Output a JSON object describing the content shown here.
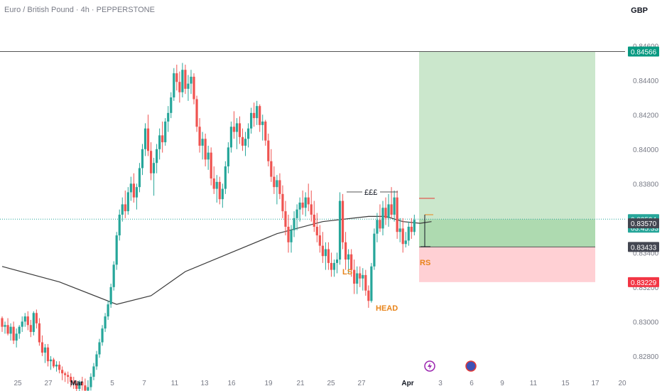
{
  "header": {
    "title": "Euro / British Pound · 4h · PEPPERSTONE",
    "currency": "GBP"
  },
  "colors": {
    "up": "#26a69a",
    "down": "#ef5350",
    "ma": "#3a3a3a",
    "target_zone": "#c8e6c9",
    "stop_zone": "#ffcdd2",
    "annotation": "#e8841a"
  },
  "chart_data": {
    "type": "candlestick",
    "title": "Euro / British Pound · 4h · PEPPERSTONE",
    "ylim": [
      0.8268,
      0.847
    ],
    "y_ticks": [
      {
        "value": 0.846,
        "label": "0.84600"
      },
      {
        "value": 0.844,
        "label": "0.84400"
      },
      {
        "value": 0.842,
        "label": "0.84200"
      },
      {
        "value": 0.84,
        "label": "0.84000"
      },
      {
        "value": 0.838,
        "label": "0.83800"
      },
      {
        "value": 0.836,
        "label": "0.83600"
      },
      {
        "value": 0.834,
        "label": "0.83400"
      },
      {
        "value": 0.832,
        "label": "0.83200"
      },
      {
        "value": 0.83,
        "label": "0.83000"
      },
      {
        "value": 0.828,
        "label": "0.82800"
      }
    ],
    "x_ticks": [
      {
        "label": "25",
        "bold": false
      },
      {
        "label": "27",
        "bold": false
      },
      {
        "label": "Mar",
        "bold": true
      },
      {
        "label": "5",
        "bold": false
      },
      {
        "label": "7",
        "bold": false
      },
      {
        "label": "11",
        "bold": false
      },
      {
        "label": "13",
        "bold": false
      },
      {
        "label": "16",
        "bold": false
      },
      {
        "label": "19",
        "bold": false
      },
      {
        "label": "21",
        "bold": false
      },
      {
        "label": "25",
        "bold": false
      },
      {
        "label": "27",
        "bold": false
      },
      {
        "label": "Apr",
        "bold": true
      },
      {
        "label": "3",
        "bold": false
      },
      {
        "label": "6",
        "bold": false
      },
      {
        "label": "9",
        "bold": false
      },
      {
        "label": "11",
        "bold": false
      },
      {
        "label": "15",
        "bold": false
      },
      {
        "label": "17",
        "bold": false
      },
      {
        "label": "20",
        "bold": false
      }
    ],
    "price_labels": [
      {
        "value": 0.84566,
        "label": "0.84566",
        "color": "#089981"
      },
      {
        "value": 0.83594,
        "label": "0.83594",
        "color": "#26a69a",
        "sub": "03:45:33"
      },
      {
        "value": 0.8357,
        "label": "0.83570",
        "color": "#434651"
      },
      {
        "value": 0.83433,
        "label": "0.83433",
        "color": "#434651"
      },
      {
        "value": 0.83229,
        "label": "0.83229",
        "color": "#f23645"
      }
    ],
    "levels": {
      "resistance": 0.84566,
      "current": 0.83594,
      "entry": 0.8357,
      "stop_top": 0.83433,
      "stop": 0.83229
    },
    "annotations": [
      {
        "text": "£££",
        "kind": "liquidity"
      },
      {
        "text": "LS",
        "kind": "left-shoulder"
      },
      {
        "text": "HEAD",
        "kind": "head"
      },
      {
        "text": "RS",
        "kind": "right-shoulder"
      }
    ],
    "candles": [
      [
        0.8302,
        0.8303,
        0.8294,
        0.8297
      ],
      [
        0.8297,
        0.83,
        0.8293,
        0.8298
      ],
      [
        0.8298,
        0.8302,
        0.8292,
        0.8293
      ],
      [
        0.8293,
        0.8299,
        0.8289,
        0.8297
      ],
      [
        0.8297,
        0.83,
        0.8287,
        0.8289
      ],
      [
        0.8289,
        0.8296,
        0.8285,
        0.8293
      ],
      [
        0.8293,
        0.8298,
        0.829,
        0.8297
      ],
      [
        0.8297,
        0.8303,
        0.8294,
        0.83
      ],
      [
        0.83,
        0.8305,
        0.8297,
        0.8303
      ],
      [
        0.8303,
        0.8306,
        0.8295,
        0.8298
      ],
      [
        0.8298,
        0.8301,
        0.8291,
        0.8294
      ],
      [
        0.8294,
        0.8306,
        0.8292,
        0.8305
      ],
      [
        0.8305,
        0.8307,
        0.8296,
        0.8299
      ],
      [
        0.8299,
        0.8302,
        0.8286,
        0.8288
      ],
      [
        0.8288,
        0.8292,
        0.828,
        0.8282
      ],
      [
        0.8282,
        0.8287,
        0.8276,
        0.8285
      ],
      [
        0.8285,
        0.8287,
        0.8274,
        0.8277
      ],
      [
        0.8277,
        0.828,
        0.8272,
        0.8278
      ],
      [
        0.8278,
        0.8279,
        0.8273,
        0.8274
      ],
      [
        0.8274,
        0.8277,
        0.8271,
        0.8275
      ],
      [
        0.8275,
        0.8277,
        0.827,
        0.8272
      ],
      [
        0.8272,
        0.8274,
        0.8266,
        0.827
      ],
      [
        0.827,
        0.8271,
        0.8265,
        0.8269
      ],
      [
        0.8269,
        0.8271,
        0.8264,
        0.8268
      ],
      [
        0.8268,
        0.827,
        0.8262,
        0.8265
      ],
      [
        0.8265,
        0.8268,
        0.8261,
        0.8264
      ],
      [
        0.8264,
        0.8266,
        0.8259,
        0.8261
      ],
      [
        0.8261,
        0.8266,
        0.8258,
        0.8265
      ],
      [
        0.8265,
        0.8268,
        0.826,
        0.8263
      ],
      [
        0.8263,
        0.8267,
        0.8258,
        0.826
      ],
      [
        0.826,
        0.8266,
        0.8257,
        0.8262
      ],
      [
        0.8262,
        0.827,
        0.826,
        0.8268
      ],
      [
        0.8268,
        0.8276,
        0.8266,
        0.8274
      ],
      [
        0.8274,
        0.8283,
        0.8272,
        0.8281
      ],
      [
        0.8281,
        0.829,
        0.8279,
        0.8288
      ],
      [
        0.8288,
        0.8298,
        0.8286,
        0.8296
      ],
      [
        0.8296,
        0.8305,
        0.8294,
        0.8303
      ],
      [
        0.8303,
        0.8312,
        0.8301,
        0.831
      ],
      [
        0.831,
        0.8322,
        0.8308,
        0.832
      ],
      [
        0.832,
        0.8335,
        0.8318,
        0.8333
      ],
      [
        0.8333,
        0.8352,
        0.833,
        0.835
      ],
      [
        0.835,
        0.8365,
        0.8347,
        0.8362
      ],
      [
        0.8362,
        0.8372,
        0.8358,
        0.8368
      ],
      [
        0.8368,
        0.8376,
        0.836,
        0.8364
      ],
      [
        0.8364,
        0.8378,
        0.8362,
        0.8375
      ],
      [
        0.8375,
        0.8384,
        0.837,
        0.838
      ],
      [
        0.838,
        0.8386,
        0.8369,
        0.8372
      ],
      [
        0.8372,
        0.838,
        0.8365,
        0.8378
      ],
      [
        0.8378,
        0.8392,
        0.8375,
        0.8389
      ],
      [
        0.8389,
        0.8403,
        0.8385,
        0.84
      ],
      [
        0.84,
        0.8415,
        0.8396,
        0.8412
      ],
      [
        0.8412,
        0.842,
        0.8396,
        0.8399
      ],
      [
        0.8399,
        0.8404,
        0.8382,
        0.8386
      ],
      [
        0.8386,
        0.8395,
        0.8373,
        0.8392
      ],
      [
        0.8392,
        0.8403,
        0.8386,
        0.84
      ],
      [
        0.84,
        0.8412,
        0.8394,
        0.8408
      ],
      [
        0.8408,
        0.8416,
        0.8398,
        0.8404
      ],
      [
        0.8404,
        0.8418,
        0.8402,
        0.8416
      ],
      [
        0.8416,
        0.8425,
        0.841,
        0.8421
      ],
      [
        0.8421,
        0.8433,
        0.8418,
        0.843
      ],
      [
        0.843,
        0.8447,
        0.8428,
        0.8444
      ],
      [
        0.8444,
        0.8449,
        0.8434,
        0.8439
      ],
      [
        0.8439,
        0.8445,
        0.8427,
        0.8433
      ],
      [
        0.8433,
        0.845,
        0.843,
        0.8446
      ],
      [
        0.8446,
        0.8449,
        0.8432,
        0.8435
      ],
      [
        0.8435,
        0.8443,
        0.8428,
        0.8438
      ],
      [
        0.8438,
        0.8446,
        0.8432,
        0.8442
      ],
      [
        0.8442,
        0.8444,
        0.8426,
        0.8429
      ],
      [
        0.8429,
        0.8431,
        0.841,
        0.8413
      ],
      [
        0.8413,
        0.8418,
        0.8398,
        0.8402
      ],
      [
        0.8402,
        0.841,
        0.8394,
        0.8406
      ],
      [
        0.8406,
        0.8409,
        0.839,
        0.8394
      ],
      [
        0.8394,
        0.8402,
        0.8388,
        0.8398
      ],
      [
        0.8398,
        0.8401,
        0.8379,
        0.8383
      ],
      [
        0.8383,
        0.839,
        0.8374,
        0.8377
      ],
      [
        0.8377,
        0.8385,
        0.8369,
        0.8381
      ],
      [
        0.8381,
        0.8384,
        0.8368,
        0.8371
      ],
      [
        0.8371,
        0.838,
        0.8366,
        0.8377
      ],
      [
        0.8377,
        0.8393,
        0.8374,
        0.839
      ],
      [
        0.839,
        0.8404,
        0.8386,
        0.8401
      ],
      [
        0.8401,
        0.8416,
        0.8398,
        0.8413
      ],
      [
        0.8413,
        0.8422,
        0.8406,
        0.841
      ],
      [
        0.841,
        0.8418,
        0.84,
        0.8415
      ],
      [
        0.8415,
        0.8419,
        0.8403,
        0.8407
      ],
      [
        0.8407,
        0.8412,
        0.8399,
        0.8402
      ],
      [
        0.8402,
        0.841,
        0.8396,
        0.8406
      ],
      [
        0.8406,
        0.8415,
        0.8401,
        0.8412
      ],
      [
        0.8412,
        0.8424,
        0.8409,
        0.8421
      ],
      [
        0.8421,
        0.8427,
        0.8413,
        0.8418
      ],
      [
        0.8418,
        0.8428,
        0.8414,
        0.8425
      ],
      [
        0.8425,
        0.8426,
        0.841,
        0.8414
      ],
      [
        0.8414,
        0.842,
        0.8405,
        0.8416
      ],
      [
        0.8416,
        0.8417,
        0.8402,
        0.8405
      ],
      [
        0.8405,
        0.8409,
        0.839,
        0.8393
      ],
      [
        0.8393,
        0.84,
        0.8381,
        0.8384
      ],
      [
        0.8384,
        0.839,
        0.8374,
        0.8378
      ],
      [
        0.8378,
        0.8385,
        0.8368,
        0.8382
      ],
      [
        0.8382,
        0.8386,
        0.8371,
        0.8374
      ],
      [
        0.8374,
        0.8379,
        0.836,
        0.8364
      ],
      [
        0.8364,
        0.837,
        0.835,
        0.8355
      ],
      [
        0.8355,
        0.8362,
        0.834,
        0.8346
      ],
      [
        0.8346,
        0.8356,
        0.834,
        0.8353
      ],
      [
        0.8353,
        0.8364,
        0.8349,
        0.836
      ],
      [
        0.836,
        0.8368,
        0.8353,
        0.8365
      ],
      [
        0.8365,
        0.8372,
        0.8358,
        0.8369
      ],
      [
        0.8369,
        0.8376,
        0.8362,
        0.8366
      ],
      [
        0.8366,
        0.8375,
        0.8361,
        0.8372
      ],
      [
        0.8372,
        0.838,
        0.8364,
        0.8368
      ],
      [
        0.8368,
        0.8376,
        0.8358,
        0.8362
      ],
      [
        0.8362,
        0.837,
        0.8352,
        0.8355
      ],
      [
        0.8355,
        0.8363,
        0.8346,
        0.835
      ],
      [
        0.835,
        0.8356,
        0.834,
        0.8344
      ],
      [
        0.8344,
        0.8352,
        0.8334,
        0.8338
      ],
      [
        0.8338,
        0.8346,
        0.833,
        0.8342
      ],
      [
        0.8342,
        0.8346,
        0.833,
        0.8334
      ],
      [
        0.8334,
        0.834,
        0.8326,
        0.833
      ],
      [
        0.833,
        0.8336,
        0.8326,
        0.8334
      ],
      [
        0.8334,
        0.834,
        0.8328,
        0.8336
      ],
      [
        0.8336,
        0.8375,
        0.8333,
        0.837
      ],
      [
        0.837,
        0.8374,
        0.8342,
        0.8346
      ],
      [
        0.8346,
        0.8352,
        0.833,
        0.8336
      ],
      [
        0.8336,
        0.8342,
        0.8328,
        0.8339
      ],
      [
        0.8339,
        0.8342,
        0.8326,
        0.833
      ],
      [
        0.833,
        0.8336,
        0.8316,
        0.8322
      ],
      [
        0.8322,
        0.8332,
        0.8316,
        0.8328
      ],
      [
        0.8328,
        0.8332,
        0.832,
        0.8325
      ],
      [
        0.8325,
        0.8331,
        0.8318,
        0.8327
      ],
      [
        0.8327,
        0.833,
        0.8315,
        0.8318
      ],
      [
        0.8318,
        0.8321,
        0.8308,
        0.8312
      ],
      [
        0.8312,
        0.8334,
        0.8311,
        0.8332
      ],
      [
        0.8332,
        0.8354,
        0.833,
        0.8351
      ],
      [
        0.8351,
        0.8363,
        0.8346,
        0.8359
      ],
      [
        0.8359,
        0.8368,
        0.8352,
        0.8354
      ],
      [
        0.8354,
        0.837,
        0.835,
        0.8366
      ],
      [
        0.8366,
        0.8372,
        0.8356,
        0.836
      ],
      [
        0.836,
        0.8374,
        0.8355,
        0.8368
      ],
      [
        0.8368,
        0.8378,
        0.836,
        0.8362
      ],
      [
        0.8362,
        0.8376,
        0.8358,
        0.8372
      ],
      [
        0.8372,
        0.8376,
        0.8348,
        0.8352
      ],
      [
        0.8352,
        0.836,
        0.8346,
        0.8354
      ],
      [
        0.8354,
        0.836,
        0.834,
        0.8345
      ],
      [
        0.8345,
        0.8352,
        0.8343,
        0.8347
      ],
      [
        0.8347,
        0.8358,
        0.8344,
        0.8355
      ],
      [
        0.8355,
        0.836,
        0.8348,
        0.8352
      ],
      [
        0.8352,
        0.8362,
        0.835,
        0.8359
      ]
    ],
    "moving_average": [
      [
        0,
        0.8332
      ],
      [
        20,
        0.8323
      ],
      [
        40,
        0.831
      ],
      [
        52,
        0.8315
      ],
      [
        64,
        0.8329
      ],
      [
        80,
        0.834
      ],
      [
        96,
        0.8351
      ],
      [
        112,
        0.8358
      ],
      [
        128,
        0.8361
      ],
      [
        134,
        0.8361
      ],
      [
        140,
        0.8358
      ],
      [
        146,
        0.8357
      ],
      [
        150,
        0.8358
      ]
    ]
  }
}
